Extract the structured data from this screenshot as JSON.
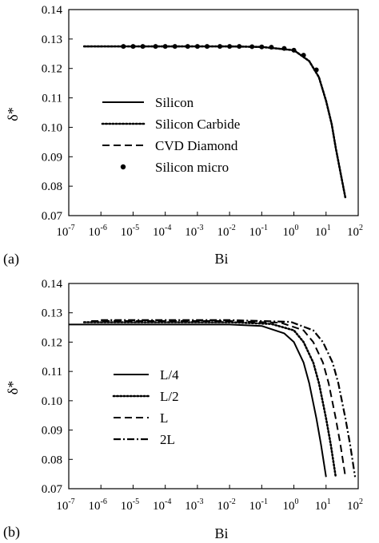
{
  "chart_data": [
    {
      "panel_label": "(a)",
      "type": "line",
      "xlabel": "Bi",
      "ylabel": "δ*",
      "x_scale": "log",
      "xlim_exp": [
        -7,
        2
      ],
      "ylim": [
        0.07,
        0.14
      ],
      "y_ticks": [
        "0.07",
        "0.08",
        "0.09",
        "0.10",
        "0.11",
        "0.12",
        "0.13",
        "0.14"
      ],
      "grid": false,
      "legend_position": "center-left",
      "series": [
        {
          "name": "Silicon",
          "style": "solid",
          "x": [
            3e-07,
            1e-05,
            0.001,
            0.01,
            0.1,
            1,
            3,
            6,
            10,
            15,
            20,
            30,
            40
          ],
          "y": [
            0.1275,
            0.1275,
            0.1275,
            0.1275,
            0.1273,
            0.1262,
            0.1225,
            0.117,
            0.109,
            0.101,
            0.093,
            0.083,
            0.076
          ]
        },
        {
          "name": "Silicon Carbide",
          "style": "dotted",
          "x": [
            3e-07,
            1e-05,
            0.001,
            0.01,
            0.1,
            1,
            3,
            6,
            10,
            15,
            20,
            30,
            40
          ],
          "y": [
            0.1275,
            0.1275,
            0.1275,
            0.1275,
            0.1273,
            0.1262,
            0.1225,
            0.117,
            0.109,
            0.101,
            0.093,
            0.083,
            0.076
          ]
        },
        {
          "name": "CVD Diamond",
          "style": "dashed",
          "x": [
            3e-07,
            1e-05,
            0.001,
            0.01,
            0.1,
            1,
            3,
            6,
            10,
            15,
            20,
            30,
            40
          ],
          "y": [
            0.1275,
            0.1275,
            0.1275,
            0.1275,
            0.1273,
            0.1262,
            0.1225,
            0.117,
            0.109,
            0.101,
            0.093,
            0.083,
            0.076
          ]
        },
        {
          "name": "Silicon micro",
          "style": "markers",
          "x": [
            5e-06,
            1e-05,
            2e-05,
            5e-05,
            0.0001,
            0.0002,
            0.0005,
            0.001,
            0.002,
            0.005,
            0.01,
            0.02,
            0.05,
            0.1,
            0.2,
            0.5,
            1,
            2,
            5
          ],
          "y": [
            0.1275,
            0.1275,
            0.1275,
            0.1275,
            0.1275,
            0.1275,
            0.1275,
            0.1275,
            0.1275,
            0.1275,
            0.1275,
            0.1275,
            0.1274,
            0.1273,
            0.1272,
            0.1268,
            0.1262,
            0.1245,
            0.1195
          ]
        }
      ]
    },
    {
      "panel_label": "(b)",
      "type": "line",
      "xlabel": "Bi",
      "ylabel": "δ*",
      "x_scale": "log",
      "xlim_exp": [
        -7,
        2
      ],
      "ylim": [
        0.07,
        0.14
      ],
      "y_ticks": [
        "0.07",
        "0.08",
        "0.09",
        "0.10",
        "0.11",
        "0.12",
        "0.13",
        "0.14"
      ],
      "grid": false,
      "legend_position": "center-left",
      "series": [
        {
          "name": "L/4",
          "style": "solid",
          "x": [
            1e-07,
            0.0001,
            0.01,
            0.1,
            0.5,
            1,
            2,
            3,
            5,
            7,
            10
          ],
          "y": [
            0.126,
            0.126,
            0.126,
            0.1255,
            0.123,
            0.12,
            0.113,
            0.106,
            0.094,
            0.085,
            0.074
          ]
        },
        {
          "name": "L/2",
          "style": "dotted",
          "x": [
            3e-07,
            0.0001,
            0.01,
            0.2,
            1,
            2,
            4,
            6,
            10,
            14,
            20
          ],
          "y": [
            0.1268,
            0.1268,
            0.1268,
            0.1262,
            0.124,
            0.12,
            0.113,
            0.106,
            0.094,
            0.085,
            0.074
          ]
        },
        {
          "name": "L",
          "style": "dashed",
          "x": [
            5e-07,
            0.0001,
            0.01,
            0.4,
            2,
            4,
            8,
            12,
            20,
            28,
            40
          ],
          "y": [
            0.1272,
            0.1272,
            0.1272,
            0.1266,
            0.124,
            0.12,
            0.113,
            0.106,
            0.094,
            0.085,
            0.074
          ]
        },
        {
          "name": "2L",
          "style": "dashdot",
          "x": [
            1e-06,
            0.0001,
            0.01,
            0.8,
            4,
            8,
            16,
            24,
            40,
            56,
            80
          ],
          "y": [
            0.1275,
            0.1275,
            0.1275,
            0.1269,
            0.124,
            0.12,
            0.113,
            0.106,
            0.094,
            0.085,
            0.074
          ]
        }
      ]
    }
  ]
}
